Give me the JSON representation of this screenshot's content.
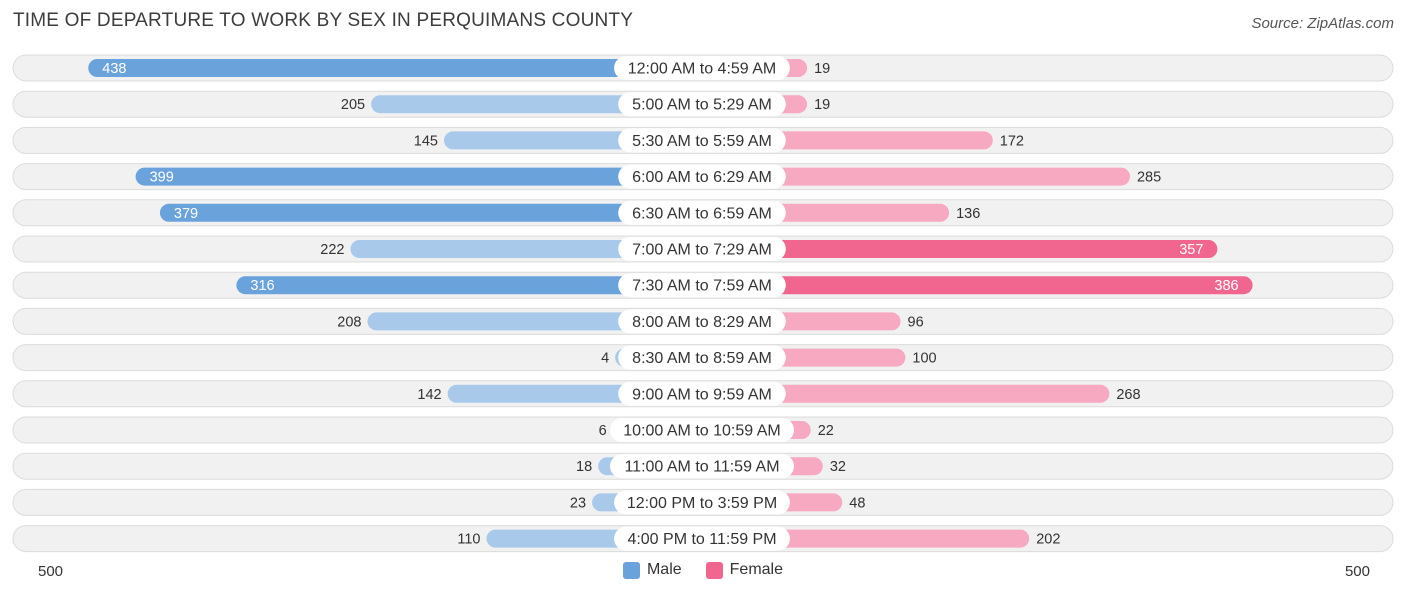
{
  "page": {
    "title": "TIME OF DEPARTURE TO WORK BY SEX IN PERQUIMANS COUNTY",
    "source": "Source: ZipAtlas.com"
  },
  "colors": {
    "male_strong": "#6aa2dc",
    "male_light": "#a9c9eb",
    "female_strong": "#f0668f",
    "female_light": "#f6a9c0",
    "row_bg": "#f1f1f1",
    "row_border": "#dcdcdc"
  },
  "chart_data": {
    "type": "bar",
    "orientation": "horizontal-diverging",
    "title": "TIME OF DEPARTURE TO WORK BY SEX IN PERQUIMANS COUNTY",
    "categories": [
      "12:00 AM to 4:59 AM",
      "5:00 AM to 5:29 AM",
      "5:30 AM to 5:59 AM",
      "6:00 AM to 6:29 AM",
      "6:30 AM to 6:59 AM",
      "7:00 AM to 7:29 AM",
      "7:30 AM to 7:59 AM",
      "8:00 AM to 8:29 AM",
      "8:30 AM to 8:59 AM",
      "9:00 AM to 9:59 AM",
      "10:00 AM to 10:59 AM",
      "11:00 AM to 11:59 AM",
      "12:00 PM to 3:59 PM",
      "4:00 PM to 11:59 PM"
    ],
    "series": [
      {
        "name": "Male",
        "values": [
          438,
          205,
          145,
          399,
          379,
          222,
          316,
          208,
          4,
          142,
          6,
          18,
          23,
          110
        ]
      },
      {
        "name": "Female",
        "values": [
          19,
          19,
          172,
          285,
          136,
          357,
          386,
          96,
          100,
          268,
          22,
          32,
          48,
          202
        ]
      }
    ],
    "axis_min_label": "500",
    "axis_max_label": "500",
    "xlim": [
      -500,
      500
    ],
    "legend": [
      "Male",
      "Female"
    ],
    "legend_position": "bottom-center"
  }
}
